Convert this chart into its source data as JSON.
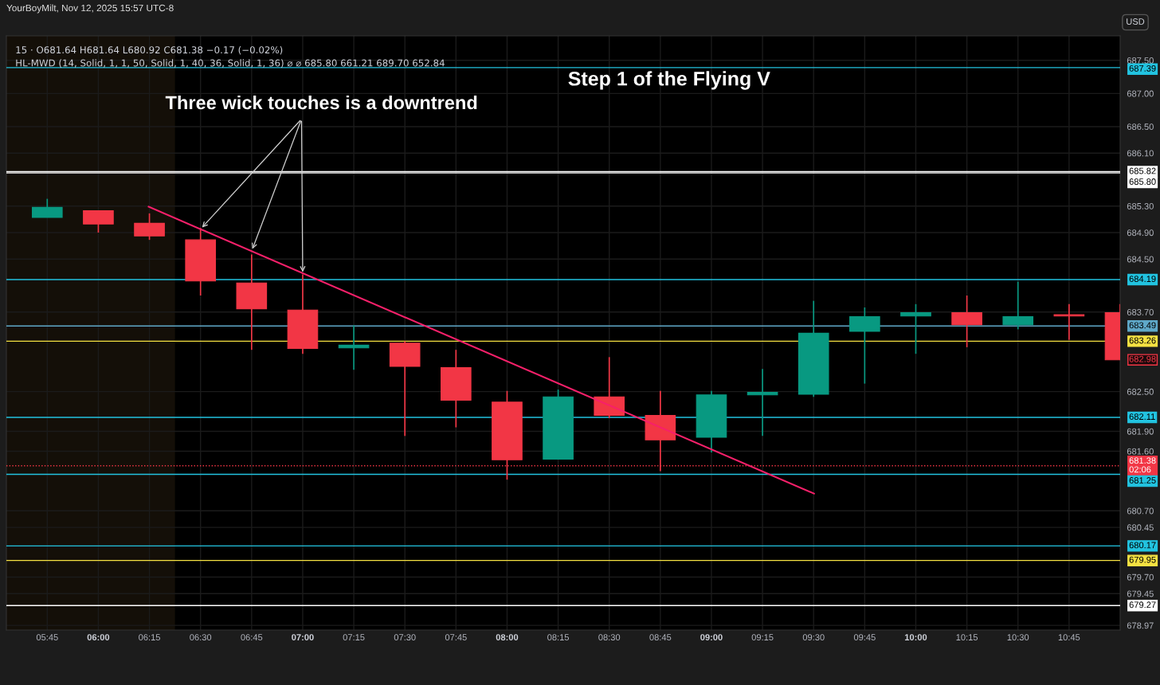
{
  "chart_data": {
    "type": "candlestick",
    "title": "Step 1 of the Flying V",
    "x": [
      5.75,
      6.0,
      6.25,
      6.5,
      6.75,
      7.0,
      7.25,
      7.5,
      7.75,
      8.0,
      8.25,
      8.5,
      8.75,
      9.0,
      9.25,
      9.5,
      9.75,
      10.0,
      10.25,
      10.5,
      10.75,
      11.0
    ],
    "ohlc": [
      [
        685.13,
        685.41,
        685.13,
        685.28
      ],
      [
        685.23,
        685.23,
        684.9,
        685.03
      ],
      [
        685.04,
        685.19,
        684.79,
        684.85
      ],
      [
        684.79,
        684.97,
        683.95,
        684.17
      ],
      [
        684.14,
        684.57,
        683.13,
        683.75
      ],
      [
        683.73,
        684.27,
        683.07,
        683.15
      ],
      [
        683.16,
        683.5,
        682.83,
        683.2
      ],
      [
        683.23,
        683.26,
        681.83,
        682.88
      ],
      [
        682.86,
        683.13,
        681.96,
        682.37
      ],
      [
        682.34,
        682.51,
        681.17,
        681.47
      ],
      [
        681.48,
        682.53,
        681.48,
        682.42
      ],
      [
        682.42,
        683.02,
        682.1,
        682.14
      ],
      [
        682.14,
        682.51,
        681.3,
        681.77
      ],
      [
        681.81,
        682.51,
        681.58,
        682.45
      ],
      [
        682.45,
        682.84,
        681.83,
        682.49
      ],
      [
        682.46,
        683.87,
        682.42,
        683.38
      ],
      [
        683.41,
        683.77,
        682.62,
        683.63
      ],
      [
        683.64,
        683.82,
        683.07,
        683.69
      ],
      [
        683.69,
        683.95,
        683.17,
        683.51
      ],
      [
        683.51,
        684.16,
        683.44,
        683.63
      ],
      [
        683.66,
        683.82,
        683.28,
        683.64
      ],
      [
        683.69,
        683.82,
        682.98,
        682.98
      ]
    ],
    "colors": [
      "#089981",
      "#f23645",
      "#f23645",
      "#f23645",
      "#f23645",
      "#f23645",
      "#089981",
      "#f23645",
      "#f23645",
      "#f23645",
      "#089981",
      "#f23645",
      "#f23645",
      "#089981",
      "#089981",
      "#089981",
      "#089981",
      "#089981",
      "#f23645",
      "#089981",
      "#f23645",
      "#f23645"
    ],
    "series": [
      {
        "type": "line",
        "color": "#f7206a",
        "x": [
          6.246,
          9.502
        ],
        "values": [
          685.29,
          680.96
        ]
      }
    ],
    "xlim": [
      5.55,
      11.0
    ],
    "xticks": [
      {
        "value": 5.75,
        "label": "05:45"
      },
      {
        "value": 6.0,
        "label": "06:00"
      },
      {
        "value": 6.25,
        "label": "06:15"
      },
      {
        "value": 6.5,
        "label": "06:30"
      },
      {
        "value": 6.75,
        "label": "06:45"
      },
      {
        "value": 7.0,
        "label": "07:00"
      },
      {
        "value": 7.25,
        "label": "07:15"
      },
      {
        "value": 7.5,
        "label": "07:30"
      },
      {
        "value": 7.75,
        "label": "07:45"
      },
      {
        "value": 8.0,
        "label": "08:00"
      },
      {
        "value": 8.25,
        "label": "08:15"
      },
      {
        "value": 8.5,
        "label": "08:30"
      },
      {
        "value": 8.75,
        "label": "08:45"
      },
      {
        "value": 9.0,
        "label": "09:00"
      },
      {
        "value": 9.25,
        "label": "09:15"
      },
      {
        "value": 9.5,
        "label": "09:30"
      },
      {
        "value": 9.75,
        "label": "09:45"
      },
      {
        "value": 10.0,
        "label": "10:00"
      },
      {
        "value": 10.25,
        "label": "10:15"
      },
      {
        "value": 10.5,
        "label": "10:30"
      },
      {
        "value": 10.75,
        "label": "10:45"
      }
    ],
    "ylim": [
      678.9,
      687.87
    ],
    "yticks": [
      {
        "value": 687.5,
        "label": "687.50"
      },
      {
        "value": 687.0,
        "label": "687.00"
      },
      {
        "value": 686.5,
        "label": "686.50"
      },
      {
        "value": 686.1,
        "label": "686.10"
      },
      {
        "value": 685.3,
        "label": "685.30"
      },
      {
        "value": 684.9,
        "label": "684.90"
      },
      {
        "value": 684.5,
        "label": "684.50"
      },
      {
        "value": 683.7,
        "label": "683.70"
      },
      {
        "value": 682.5,
        "label": "682.50"
      },
      {
        "value": 681.9,
        "label": "681.90"
      },
      {
        "value": 681.6,
        "label": "681.60"
      },
      {
        "value": 680.7,
        "label": "680.70"
      },
      {
        "value": 680.45,
        "label": "680.45"
      },
      {
        "value": 679.7,
        "label": "679.70"
      },
      {
        "value": 679.45,
        "label": "679.45"
      },
      {
        "value": 678.97,
        "label": "678.97"
      }
    ],
    "grid": true,
    "ref_lines": [
      {
        "axis": "y",
        "value": 687.39,
        "label": "687.39",
        "color": "#22c3e0"
      },
      {
        "axis": "y",
        "value": 685.82,
        "label": "685.82",
        "color": "#ffffff"
      },
      {
        "axis": "y",
        "value": 685.8,
        "label": "685.80",
        "color": "#ffffff"
      },
      {
        "axis": "y",
        "value": 684.19,
        "label": "684.19",
        "color": "#22c3e0"
      },
      {
        "axis": "y",
        "value": 683.49,
        "label": "683.49",
        "color": "#5fa8c8"
      },
      {
        "axis": "y",
        "value": 683.26,
        "label": "683.26",
        "color": "#f5e142"
      },
      {
        "axis": "y",
        "value": 682.11,
        "label": "682.11",
        "color": "#22c3e0"
      },
      {
        "axis": "y",
        "value": 681.38,
        "label": "681.38",
        "color": "#f23645",
        "line_style": "dotted"
      },
      {
        "axis": "y",
        "value": 681.25,
        "label": "681.25",
        "color": "#22c3e0"
      },
      {
        "axis": "y",
        "value": 680.17,
        "label": "680.17",
        "color": "#22c3e0"
      },
      {
        "axis": "y",
        "value": 679.95,
        "label": "679.95",
        "color": "#f5e142"
      },
      {
        "axis": "y",
        "value": 679.27,
        "label": "679.27",
        "color": "#ffffff"
      }
    ],
    "bands": [
      {
        "axis": "x",
        "from": 5.55,
        "to": 6.375,
        "color": "#140f08"
      }
    ],
    "annotations": [
      {
        "text": "Three wick touches is a downtrend",
        "x": 7.0,
        "y": 684.27
      },
      "682.98",
      "02:06",
      "YourBoyMilt, Nov 12, 2025 15:57 UTC-8",
      "15 · O681.64 H681.64 L680.92 C681.38 −0.17 (−0.02%)",
      "HL-MWD (14, Solid, 1, 1, 50, Solid, 1, 40, 36, Solid, 1, 36) ⌀ ⌀ 685.80 661.21 689.70 652.84",
      "USD"
    ]
  }
}
